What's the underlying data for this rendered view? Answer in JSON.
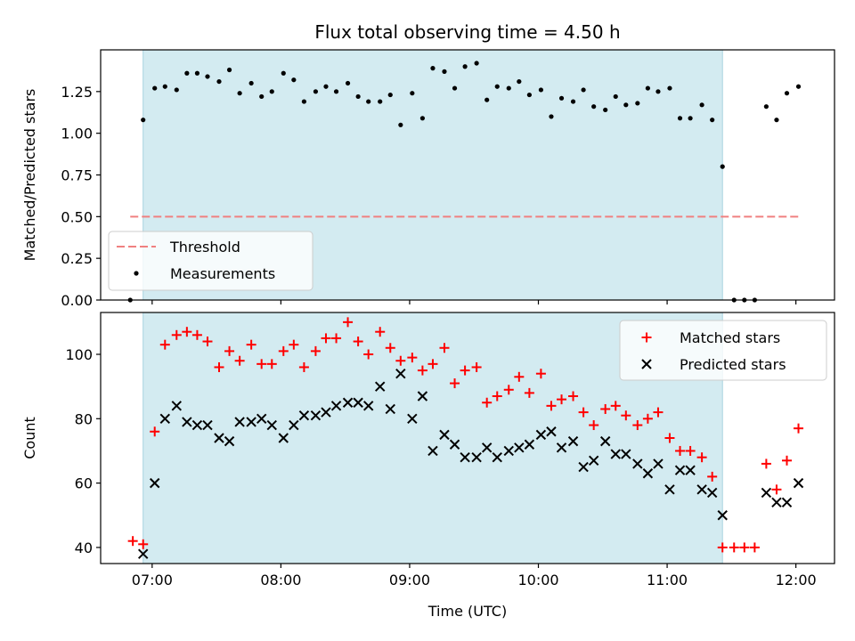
{
  "title": "Flux total observing time = 4.50 h",
  "colors": {
    "shade": "#d3ebf1",
    "shade_edge": "#a9d3df",
    "threshold": "#f08080",
    "measurement": "#000000",
    "matched": "#ff0000",
    "predicted": "#000000"
  },
  "chart_data": [
    {
      "type": "scatter",
      "ylabel": "Matched/Predicted stars",
      "ylim": [
        0,
        1.5
      ],
      "yticks": [
        0.0,
        0.25,
        0.5,
        0.75,
        1.0,
        1.25
      ],
      "ytick_labels": [
        "0.00",
        "0.25",
        "0.50",
        "0.75",
        "1.00",
        "1.25"
      ],
      "xlim_hours": [
        6.6,
        12.3
      ],
      "grid": false,
      "legend_position": "lower-left",
      "shaded_span_hours": [
        6.93,
        11.43
      ],
      "threshold": {
        "name": "Threshold",
        "y": 0.5,
        "x_start_hours": 6.83,
        "x_end_hours": 12.03
      },
      "series": [
        {
          "name": "Measurements",
          "points": [
            [
              6.83,
              0.0
            ],
            [
              6.93,
              1.08
            ],
            [
              7.02,
              1.27
            ],
            [
              7.1,
              1.28
            ],
            [
              7.19,
              1.26
            ],
            [
              7.27,
              1.36
            ],
            [
              7.35,
              1.36
            ],
            [
              7.43,
              1.34
            ],
            [
              7.52,
              1.31
            ],
            [
              7.6,
              1.38
            ],
            [
              7.68,
              1.24
            ],
            [
              7.77,
              1.3
            ],
            [
              7.85,
              1.22
            ],
            [
              7.93,
              1.25
            ],
            [
              8.02,
              1.36
            ],
            [
              8.1,
              1.32
            ],
            [
              8.18,
              1.19
            ],
            [
              8.27,
              1.25
            ],
            [
              8.35,
              1.28
            ],
            [
              8.43,
              1.25
            ],
            [
              8.52,
              1.3
            ],
            [
              8.6,
              1.22
            ],
            [
              8.68,
              1.19
            ],
            [
              8.77,
              1.19
            ],
            [
              8.85,
              1.23
            ],
            [
              8.93,
              1.05
            ],
            [
              9.02,
              1.24
            ],
            [
              9.1,
              1.09
            ],
            [
              9.18,
              1.39
            ],
            [
              9.27,
              1.37
            ],
            [
              9.35,
              1.27
            ],
            [
              9.43,
              1.4
            ],
            [
              9.52,
              1.42
            ],
            [
              9.6,
              1.2
            ],
            [
              9.68,
              1.28
            ],
            [
              9.77,
              1.27
            ],
            [
              9.85,
              1.31
            ],
            [
              9.93,
              1.23
            ],
            [
              10.02,
              1.26
            ],
            [
              10.1,
              1.1
            ],
            [
              10.18,
              1.21
            ],
            [
              10.27,
              1.19
            ],
            [
              10.35,
              1.26
            ],
            [
              10.43,
              1.16
            ],
            [
              10.52,
              1.14
            ],
            [
              10.6,
              1.22
            ],
            [
              10.68,
              1.17
            ],
            [
              10.77,
              1.18
            ],
            [
              10.85,
              1.27
            ],
            [
              10.93,
              1.25
            ],
            [
              11.02,
              1.27
            ],
            [
              11.1,
              1.09
            ],
            [
              11.18,
              1.09
            ],
            [
              11.27,
              1.17
            ],
            [
              11.35,
              1.08
            ],
            [
              11.43,
              0.8
            ],
            [
              11.52,
              0.0
            ],
            [
              11.6,
              0.0
            ],
            [
              11.68,
              0.0
            ],
            [
              11.77,
              1.16
            ],
            [
              11.85,
              1.08
            ],
            [
              11.93,
              1.24
            ],
            [
              12.02,
              1.28
            ]
          ]
        }
      ]
    },
    {
      "type": "scatter",
      "xlabel": "Time (UTC)",
      "ylabel": "Count",
      "ylim": [
        35,
        113
      ],
      "yticks": [
        40,
        60,
        80,
        100
      ],
      "ytick_labels": [
        "40",
        "60",
        "80",
        "100"
      ],
      "xlim_hours": [
        6.6,
        12.3
      ],
      "xticks_hours": [
        7,
        8,
        9,
        10,
        11,
        12
      ],
      "xtick_labels": [
        "07:00",
        "08:00",
        "09:00",
        "10:00",
        "11:00",
        "12:00"
      ],
      "grid": false,
      "legend_position": "upper-right",
      "shaded_span_hours": [
        6.93,
        11.43
      ],
      "series": [
        {
          "name": "Matched stars",
          "marker": "plus",
          "points": [
            [
              6.85,
              42
            ],
            [
              6.93,
              41
            ],
            [
              7.02,
              76
            ],
            [
              7.1,
              103
            ],
            [
              7.19,
              106
            ],
            [
              7.27,
              107
            ],
            [
              7.35,
              106
            ],
            [
              7.43,
              104
            ],
            [
              7.52,
              96
            ],
            [
              7.6,
              101
            ],
            [
              7.68,
              98
            ],
            [
              7.77,
              103
            ],
            [
              7.85,
              97
            ],
            [
              7.93,
              97
            ],
            [
              8.02,
              101
            ],
            [
              8.1,
              103
            ],
            [
              8.18,
              96
            ],
            [
              8.27,
              101
            ],
            [
              8.35,
              105
            ],
            [
              8.43,
              105
            ],
            [
              8.52,
              110
            ],
            [
              8.6,
              104
            ],
            [
              8.68,
              100
            ],
            [
              8.77,
              107
            ],
            [
              8.85,
              102
            ],
            [
              8.93,
              98
            ],
            [
              9.02,
              99
            ],
            [
              9.1,
              95
            ],
            [
              9.18,
              97
            ],
            [
              9.27,
              102
            ],
            [
              9.35,
              91
            ],
            [
              9.43,
              95
            ],
            [
              9.52,
              96
            ],
            [
              9.6,
              85
            ],
            [
              9.68,
              87
            ],
            [
              9.77,
              89
            ],
            [
              9.85,
              93
            ],
            [
              9.93,
              88
            ],
            [
              10.02,
              94
            ],
            [
              10.1,
              84
            ],
            [
              10.18,
              86
            ],
            [
              10.27,
              87
            ],
            [
              10.35,
              82
            ],
            [
              10.43,
              78
            ],
            [
              10.52,
              83
            ],
            [
              10.6,
              84
            ],
            [
              10.68,
              81
            ],
            [
              10.77,
              78
            ],
            [
              10.85,
              80
            ],
            [
              10.93,
              82
            ],
            [
              11.02,
              74
            ],
            [
              11.1,
              70
            ],
            [
              11.18,
              70
            ],
            [
              11.27,
              68
            ],
            [
              11.35,
              62
            ],
            [
              11.43,
              40
            ],
            [
              11.52,
              40
            ],
            [
              11.6,
              40
            ],
            [
              11.68,
              40
            ],
            [
              11.77,
              66
            ],
            [
              11.85,
              58
            ],
            [
              11.93,
              67
            ],
            [
              12.02,
              77
            ]
          ]
        },
        {
          "name": "Predicted stars",
          "marker": "x",
          "points": [
            [
              6.93,
              38
            ],
            [
              7.02,
              60
            ],
            [
              7.1,
              80
            ],
            [
              7.19,
              84
            ],
            [
              7.27,
              79
            ],
            [
              7.35,
              78
            ],
            [
              7.43,
              78
            ],
            [
              7.52,
              74
            ],
            [
              7.6,
              73
            ],
            [
              7.68,
              79
            ],
            [
              7.77,
              79
            ],
            [
              7.85,
              80
            ],
            [
              7.93,
              78
            ],
            [
              8.02,
              74
            ],
            [
              8.1,
              78
            ],
            [
              8.18,
              81
            ],
            [
              8.27,
              81
            ],
            [
              8.35,
              82
            ],
            [
              8.43,
              84
            ],
            [
              8.52,
              85
            ],
            [
              8.6,
              85
            ],
            [
              8.68,
              84
            ],
            [
              8.77,
              90
            ],
            [
              8.85,
              83
            ],
            [
              8.93,
              94
            ],
            [
              9.02,
              80
            ],
            [
              9.1,
              87
            ],
            [
              9.18,
              70
            ],
            [
              9.27,
              75
            ],
            [
              9.35,
              72
            ],
            [
              9.43,
              68
            ],
            [
              9.52,
              68
            ],
            [
              9.6,
              71
            ],
            [
              9.68,
              68
            ],
            [
              9.77,
              70
            ],
            [
              9.85,
              71
            ],
            [
              9.93,
              72
            ],
            [
              10.02,
              75
            ],
            [
              10.1,
              76
            ],
            [
              10.18,
              71
            ],
            [
              10.27,
              73
            ],
            [
              10.35,
              65
            ],
            [
              10.43,
              67
            ],
            [
              10.52,
              73
            ],
            [
              10.6,
              69
            ],
            [
              10.68,
              69
            ],
            [
              10.77,
              66
            ],
            [
              10.85,
              63
            ],
            [
              10.93,
              66
            ],
            [
              11.02,
              58
            ],
            [
              11.1,
              64
            ],
            [
              11.18,
              64
            ],
            [
              11.27,
              58
            ],
            [
              11.35,
              57
            ],
            [
              11.43,
              50
            ],
            [
              11.77,
              57
            ],
            [
              11.85,
              54
            ],
            [
              11.93,
              54
            ],
            [
              12.02,
              60
            ]
          ]
        }
      ]
    }
  ]
}
